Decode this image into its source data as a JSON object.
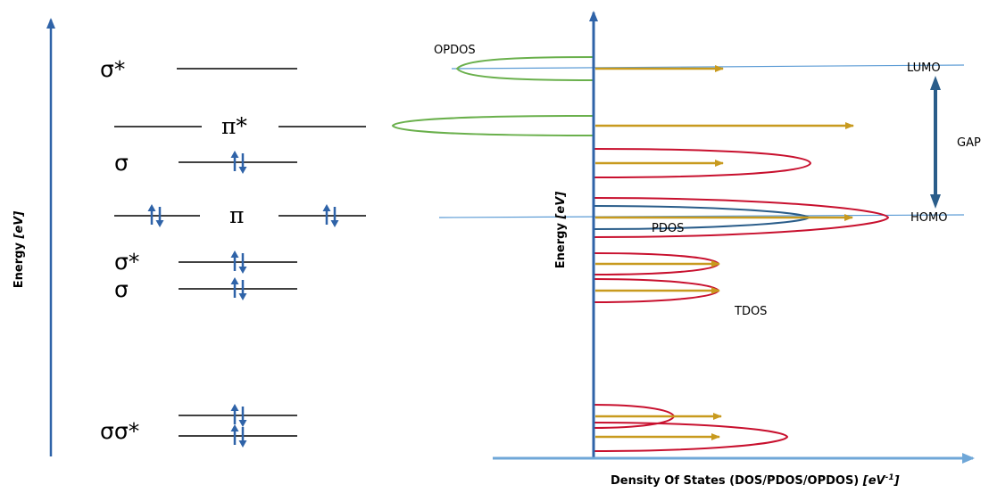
{
  "left_axis": {
    "label_main": "Energy",
    "label_unit": "[eV]",
    "color": "#2f63a8"
  },
  "mo_levels": {
    "sigma_star_top": "σ*",
    "pi_star": "π*",
    "sigma_mid": "σ",
    "pi": "π",
    "sigma_star_mid": "σ*",
    "sigma_low": "σ",
    "sigma_sigma_star_bottom": "σσ*"
  },
  "right_axis": {
    "y_label_main": "Energy",
    "y_label_unit": "[eV]",
    "x_label_main": "Density Of States (DOS/PDOS/OPDOS)",
    "x_label_unit_open": "[eV",
    "x_label_unit_exp": "-1",
    "x_label_unit_close": "]",
    "axis_color": "#2f63a8",
    "x_axis_color": "#6fa7d8"
  },
  "labels": {
    "opdos": "OPDOS",
    "lumo": "LUMO",
    "gap": "GAP",
    "homo": "HOMO",
    "pdos": "PDOS",
    "tdos": "TDOS"
  },
  "colors": {
    "opdos": "#6ab04c",
    "tdos": "#c8102e",
    "pdos": "#2a5d8a",
    "arrow": "#c89a1e",
    "reference_line": "#5b9bd5",
    "gap_arrow": "#2a5d8a",
    "level_line": "#000000",
    "electron": "#2f63a8"
  }
}
